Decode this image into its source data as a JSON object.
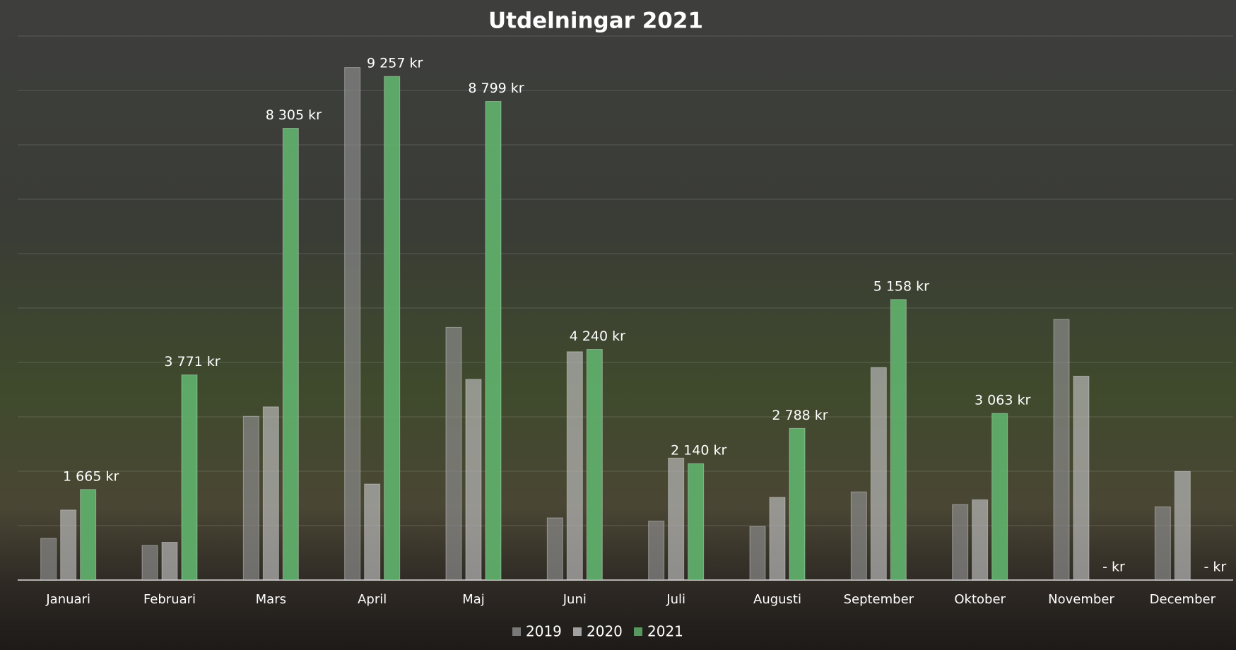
{
  "chart_data": {
    "type": "bar",
    "title": "Utdelningar 2021",
    "categories": [
      "Januari",
      "Februari",
      "Mars",
      "April",
      "Maj",
      "Juni",
      "Juli",
      "Augusti",
      "September",
      "Oktober",
      "November",
      "December"
    ],
    "series": [
      {
        "name": "2019",
        "color": "#8a8a8a",
        "values": [
          767,
          637,
          3010,
          9421,
          4645,
          1143,
          1085,
          984,
          1621,
          1389,
          4790,
          1346
        ]
      },
      {
        "name": "2020",
        "color": "#b8b8b8",
        "values": [
          1288,
          695,
          3184,
          1766,
          3690,
          4197,
          2243,
          1520,
          3907,
          1476,
          3748,
          1997
        ]
      },
      {
        "name": "2021",
        "color": "#5fae6a",
        "values": [
          1665,
          3771,
          8305,
          9257,
          8799,
          4240,
          2140,
          2788,
          5158,
          3063,
          0,
          0
        ],
        "value_labels": [
          "1 665 kr",
          "3 771 kr",
          "8 305 kr",
          "9 257 kr",
          "8 799 kr",
          "4 240 kr",
          "2 140 kr",
          "2 788 kr",
          "5 158 kr",
          "3 063 kr",
          "-   kr",
          "-   kr"
        ]
      }
    ],
    "ylim": [
      0,
      10000
    ],
    "yticks": [
      0,
      1000,
      2000,
      3000,
      4000,
      5000,
      6000,
      7000,
      8000,
      9000,
      10000
    ],
    "grid": true
  }
}
